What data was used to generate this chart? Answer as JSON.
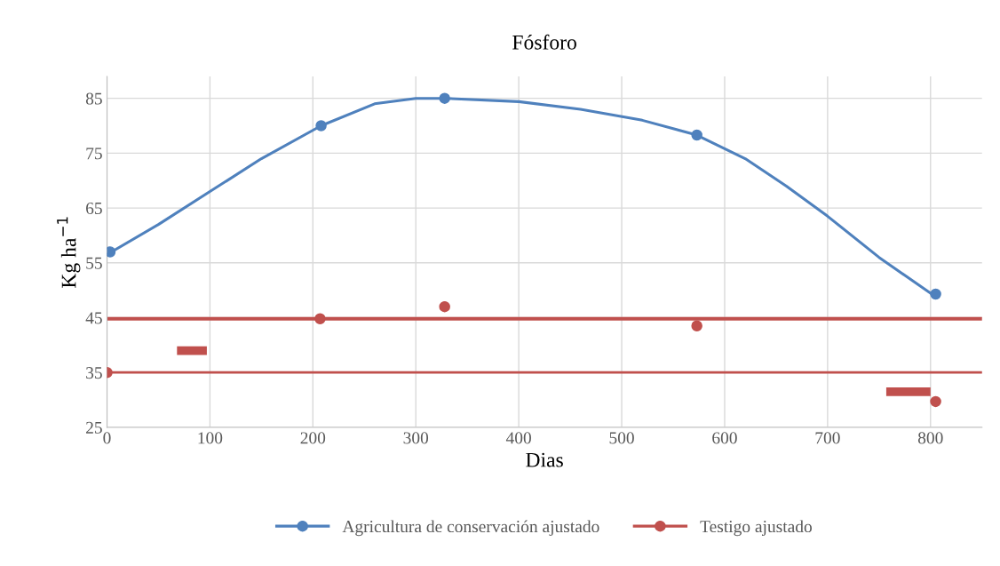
{
  "chart_data": {
    "type": "line",
    "title": "Fósforo",
    "xlabel": "Dias",
    "ylabel": "Kg ha$^{−1}$",
    "xlim": [
      0,
      850
    ],
    "xticks": [
      0,
      100,
      200,
      300,
      400,
      500,
      600,
      700,
      800
    ],
    "ylim": [
      25,
      89
    ],
    "yticks": [
      25,
      35,
      45,
      55,
      65,
      75,
      85
    ],
    "grid": true,
    "legend": "bottom",
    "marker": "circle",
    "series": [
      {
        "color": "#4f81bd",
        "marker": "none",
        "x": [
          0,
          50,
          100,
          150,
          208,
          260,
          300,
          328,
          400,
          460,
          520,
          573,
          620,
          660,
          700,
          750,
          805
        ],
        "values": [
          56.5,
          62,
          68,
          74,
          80,
          84,
          85,
          85,
          84.4,
          83,
          81,
          78.3,
          74,
          69,
          63.5,
          56,
          48.8
        ]
      },
      {
        "name": "Agricultura de conservación ajustado",
        "color": "#4f81bd",
        "type": "scatter",
        "x": [
          3,
          208,
          328,
          573,
          805
        ],
        "values": [
          57,
          80,
          85,
          78.3,
          49.3
        ]
      },
      {
        "name": "Testigo ajustado",
        "color": "#c0504d",
        "type": "scatter",
        "x": [
          0,
          207,
          328,
          573,
          805
        ],
        "values": [
          35,
          44.8,
          47,
          43.5,
          29.7
        ]
      },
      {
        "color": "#c0504d",
        "type": "line",
        "marker": "none",
        "x": [
          68,
          97
        ],
        "values": [
          39,
          39
        ]
      },
      {
        "color": "#c0504d",
        "type": "line",
        "marker": "none",
        "x": [
          757,
          800
        ],
        "values": [
          31.5,
          31.5
        ]
      }
    ],
    "ref_lines": [
      {
        "axis": "y",
        "value": 44.8,
        "color": "#c0504d"
      },
      {
        "axis": "y",
        "value": 35,
        "color": "#c0504d"
      }
    ]
  }
}
